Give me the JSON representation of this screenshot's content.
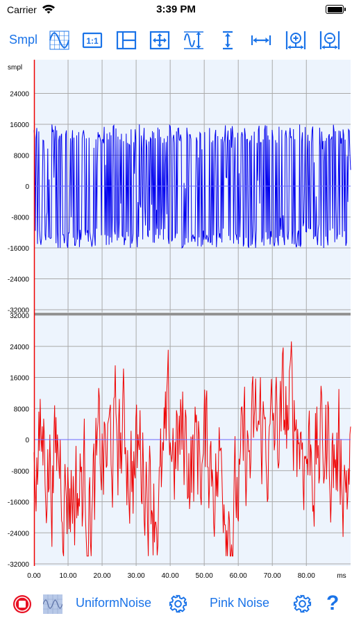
{
  "status": {
    "carrier": "Carrier",
    "time": "3:39 PM"
  },
  "toolbar": {
    "mode_label": "Smpl",
    "buttons": [
      {
        "icon": "waveform-grid-icon"
      },
      {
        "icon": "one-to-one-icon",
        "label": "1:1"
      },
      {
        "icon": "split-view-icon"
      },
      {
        "icon": "move-arrows-icon"
      },
      {
        "icon": "vertical-fit-wave-icon"
      },
      {
        "icon": "vertical-zoom-icon"
      },
      {
        "icon": "horizontal-zoom-icon"
      },
      {
        "icon": "zoom-in-icon"
      },
      {
        "icon": "zoom-out-icon"
      }
    ]
  },
  "chart_data": [
    {
      "type": "line",
      "title": "",
      "ylabel": "smpl",
      "ylim": [
        -32000,
        32000
      ],
      "yticks": [
        "24000",
        "16000",
        "8000",
        "0",
        "-8000",
        "-16000",
        "-24000",
        "-32000"
      ],
      "yticks_values": [
        24000,
        16000,
        8000,
        0,
        -8000,
        -16000,
        -24000,
        -32000
      ],
      "series": [
        {
          "color": "#0000ee",
          "distribution": "uniform",
          "range": [
            -16000,
            16000
          ]
        }
      ]
    },
    {
      "type": "line",
      "title": "",
      "ylim": [
        -32000,
        32000
      ],
      "yticks": [
        "32000",
        "24000",
        "16000",
        "8000",
        "0",
        "-8000",
        "-16000",
        "-24000",
        "-32000"
      ],
      "yticks_values": [
        32000,
        24000,
        16000,
        8000,
        0,
        -8000,
        -16000,
        -24000,
        -32000
      ],
      "series": [
        {
          "color": "#ee0000",
          "distribution": "pink",
          "range": [
            -30000,
            30000
          ]
        }
      ]
    }
  ],
  "x_axis": {
    "unit": "ms",
    "xlim": [
      0,
      93
    ],
    "ticks": [
      "0.00",
      "10.00",
      "20.00",
      "30.00",
      "40.00",
      "50.00",
      "60.00",
      "70.00",
      "80.00"
    ],
    "tick_values": [
      0,
      10,
      20,
      30,
      40,
      50,
      60,
      70,
      80
    ]
  },
  "bottom_bar": {
    "channel1_label": "UniformNoise",
    "channel2_label": "Pink Noise",
    "help_label": "?"
  },
  "colors": {
    "accent": "#1a73e8",
    "plot_bg": "#edf4fd",
    "grid": "#a9a9a9",
    "channel1": "#0000ee",
    "channel2": "#ee0000",
    "stop": "#e81123"
  }
}
